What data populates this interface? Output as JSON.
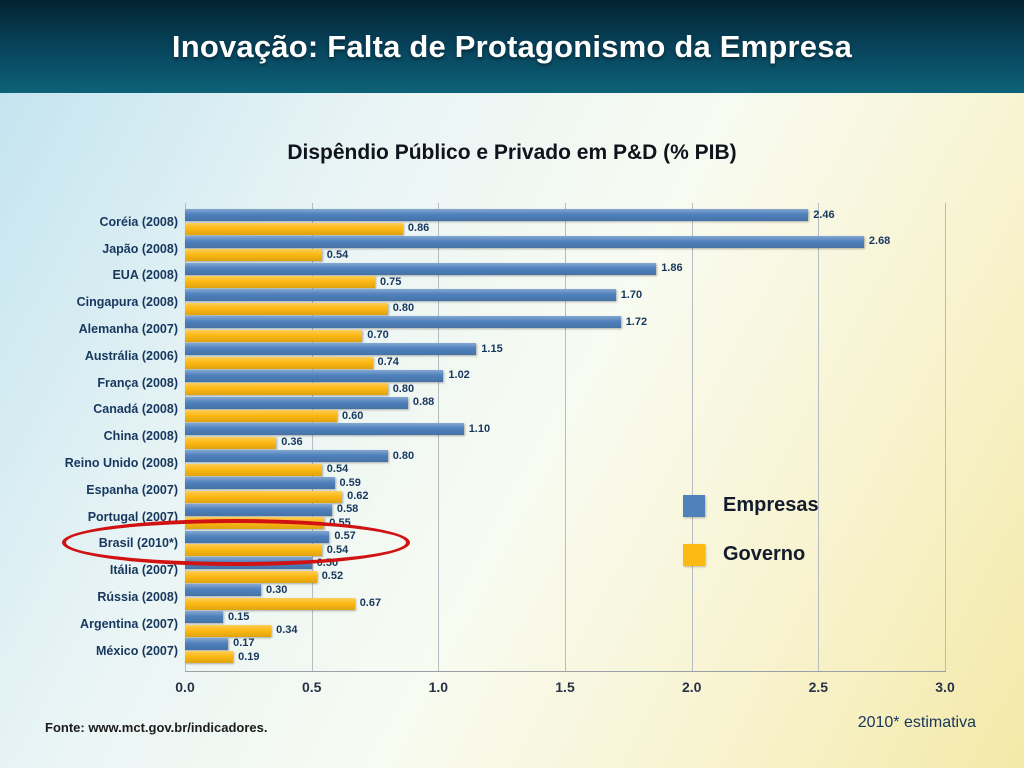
{
  "header": {
    "title": "Inovação: Falta de Protagonismo da Empresa"
  },
  "footer": {
    "source": "Fonte: www.mct.gov.br/indicadores.",
    "note": "2010* estimativa"
  },
  "colors": {
    "empresas_blue": "#4f81bd",
    "governo_yellow": "#fdb913",
    "label_navy": "#17375e",
    "highlight_red": "#d01212",
    "banner_teal_dark": "#03232f",
    "banner_teal_light": "#0d6278"
  },
  "chart_data": {
    "type": "bar",
    "orientation": "horizontal",
    "title": "Dispêndio Público e Privado em P&D (% PIB)",
    "categories": [
      "Coréia (2008)",
      "Japão (2008)",
      "EUA (2008)",
      "Cingapura (2008)",
      "Alemanha (2007)",
      "Austrália (2006)",
      "França (2008)",
      "Canadá (2008)",
      "China (2008)",
      "Reino Unido (2008)",
      "Espanha (2007)",
      "Portugal (2007)",
      "Brasil (2010*)",
      "Itália (2007)",
      "Rússia (2008)",
      "Argentina (2007)",
      "México (2007)"
    ],
    "series": [
      {
        "name": "Empresas",
        "color": "#4f81bd",
        "values": [
          2.46,
          2.68,
          1.86,
          1.7,
          1.72,
          1.15,
          1.02,
          0.88,
          1.1,
          0.8,
          0.59,
          0.58,
          0.57,
          0.5,
          0.3,
          0.15,
          0.17
        ]
      },
      {
        "name": "Governo",
        "color": "#fdb913",
        "values": [
          0.86,
          0.54,
          0.75,
          0.8,
          0.7,
          0.74,
          0.8,
          0.6,
          0.36,
          0.54,
          0.62,
          0.55,
          0.54,
          0.52,
          0.67,
          0.34,
          0.19
        ]
      }
    ],
    "x_ticks": [
      "0.0",
      "0.5",
      "1.0",
      "1.5",
      "2.0",
      "2.5",
      "3.0"
    ],
    "xlim": [
      0,
      3.0
    ],
    "grid": "vertical",
    "legend_position": "right-middle",
    "highlighted_category": "Brasil (2010*)"
  }
}
